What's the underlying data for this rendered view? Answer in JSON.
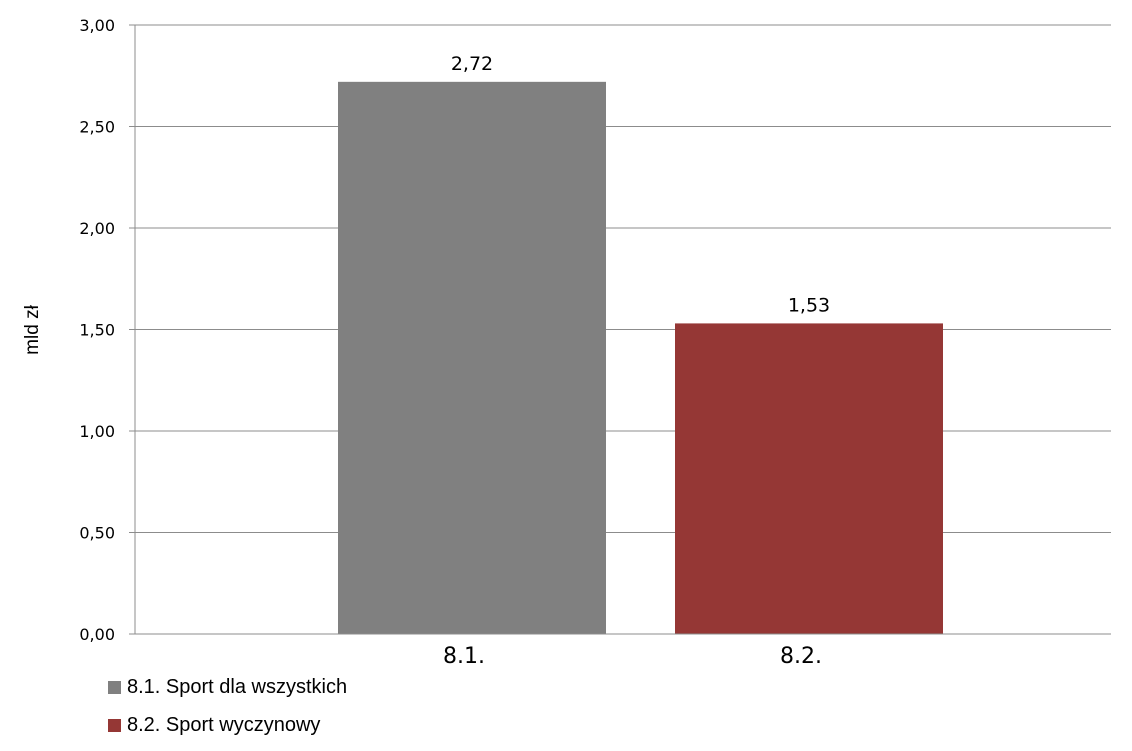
{
  "chart_data": {
    "type": "bar",
    "categories": [
      "8.1.",
      "8.2."
    ],
    "values": [
      2.72,
      1.53
    ],
    "data_labels": [
      "2,72",
      "1,53"
    ],
    "colors": [
      "#808080",
      "#953735"
    ],
    "ylabel": "mld zł",
    "ylim": [
      0,
      3
    ],
    "yticks": [
      0,
      0.5,
      1,
      1.5,
      2,
      2.5,
      3
    ],
    "ytick_labels": [
      "0,00",
      "0,50",
      "1,00",
      "1,50",
      "2,00",
      "2,50",
      "3,00"
    ],
    "grid": true,
    "legend_position": "bottom-left",
    "legend": [
      {
        "label": "8.1. Sport dla wszystkich",
        "color": "#808080"
      },
      {
        "label": "8.2. Sport wyczynowy",
        "color": "#953735"
      }
    ]
  }
}
